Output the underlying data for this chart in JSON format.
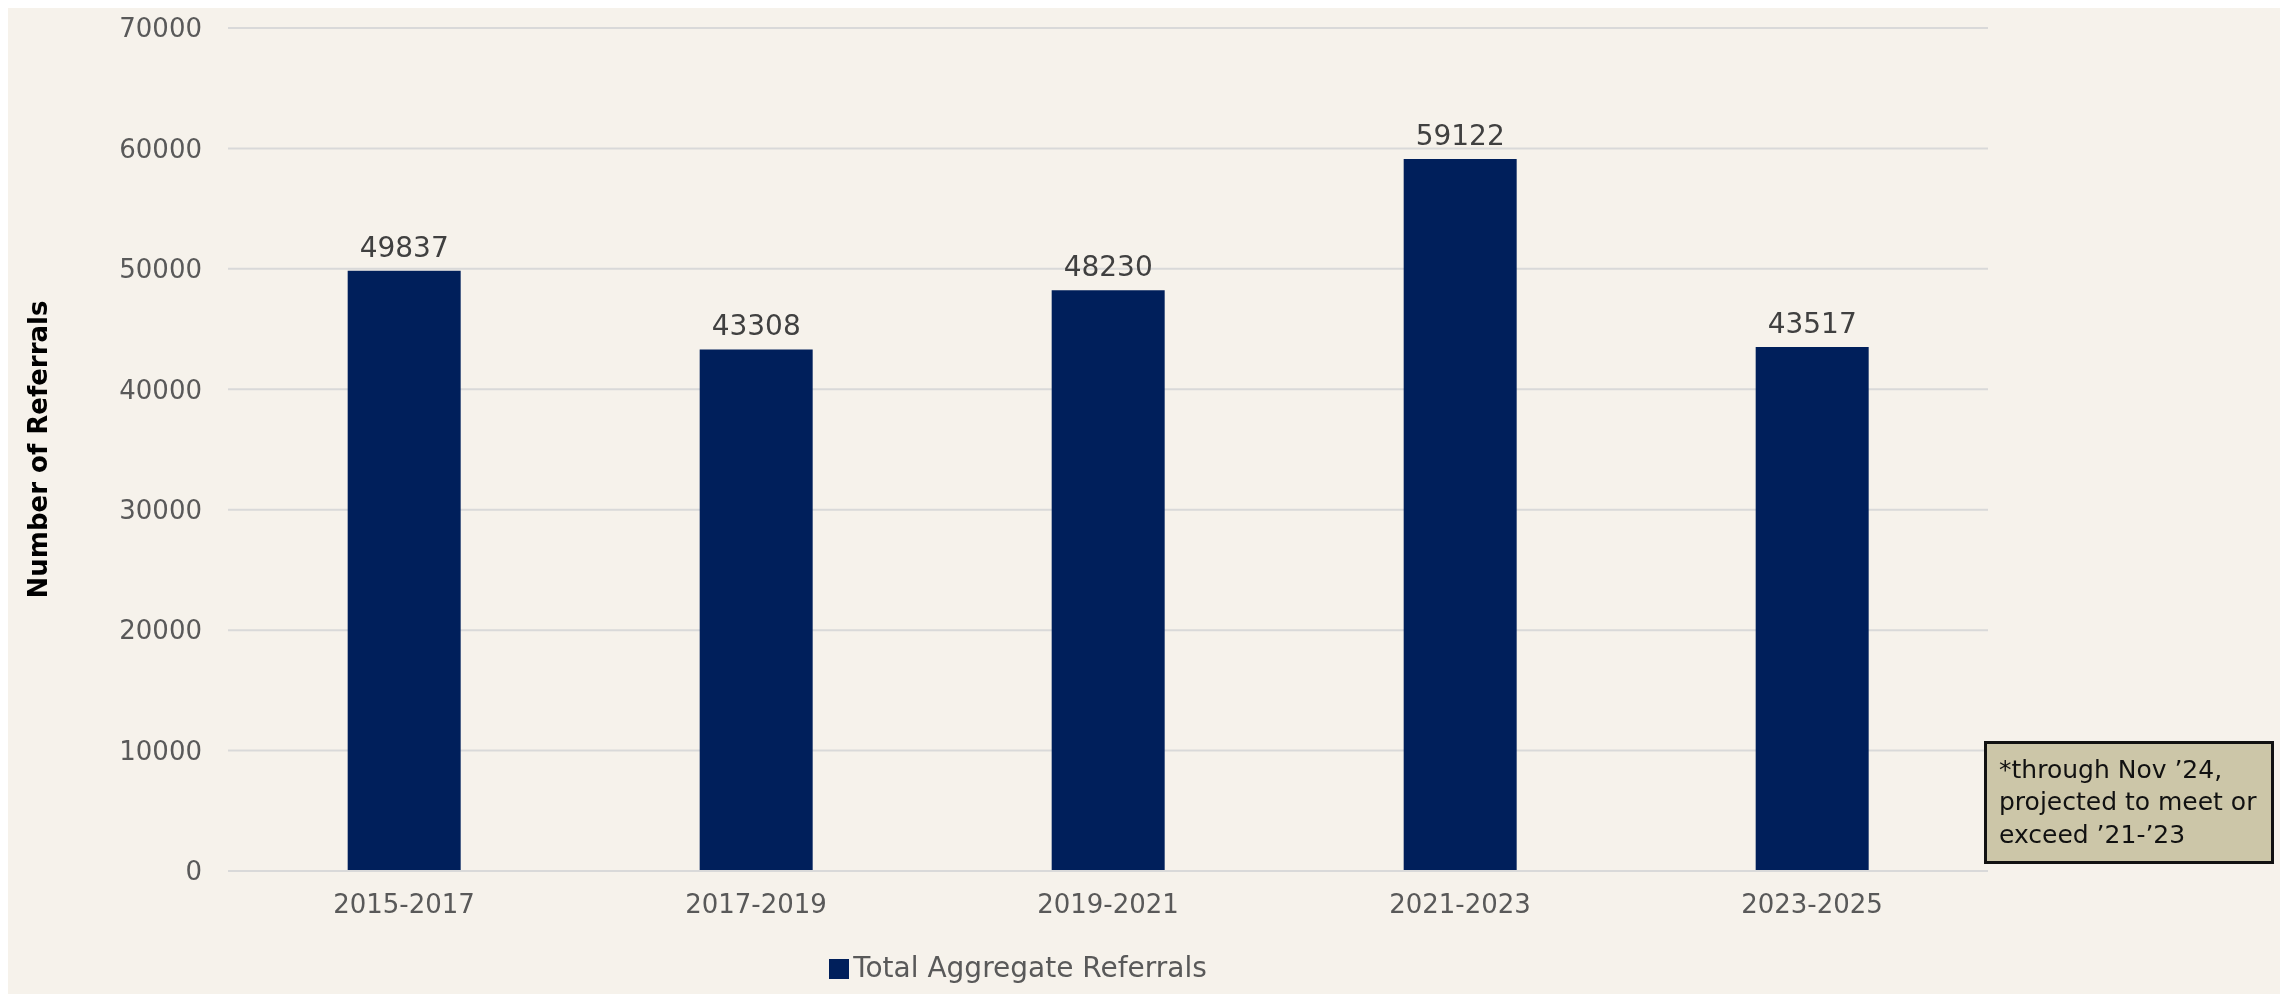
{
  "chart_data": {
    "type": "bar",
    "categories": [
      "2015-2017",
      "2017-2019",
      "2019-2021",
      "2021-2023",
      "2023-2025"
    ],
    "series": [
      {
        "name": "Total Aggregate Referrals",
        "color": "#001f5b",
        "values": [
          49837,
          43308,
          48230,
          59122,
          43517
        ]
      }
    ],
    "ylabel": "Number of Referrals",
    "ylim": [
      0,
      70000
    ],
    "yticks": [
      0,
      10000,
      20000,
      30000,
      40000,
      50000,
      60000,
      70000
    ],
    "grid": "y",
    "legend": "bottom",
    "data_labels": true,
    "annotations": [
      "*through Nov ’24, projected to meet or exceed ’21-’23"
    ]
  }
}
